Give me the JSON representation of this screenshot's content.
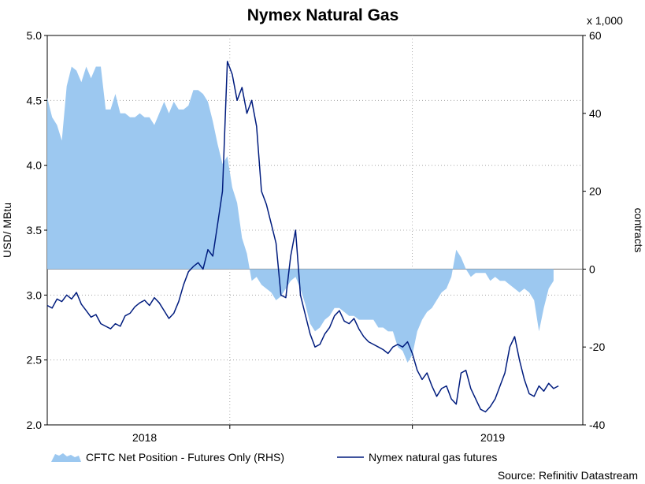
{
  "chart_data": {
    "type": "area+line",
    "title": "Nymex Natural Gas",
    "y_left": {
      "label": "USD/ MBtu",
      "range": [
        2.0,
        5.0
      ],
      "ticks": [
        "2.0",
        "2.5",
        "3.0",
        "3.5",
        "4.0",
        "4.5",
        "5.0"
      ]
    },
    "y_right": {
      "label": "contracts",
      "multiplier_label": "x 1,000",
      "range": [
        -40,
        60
      ],
      "ticks": [
        "-40",
        "-20",
        "0",
        "20",
        "40",
        "60"
      ]
    },
    "x": {
      "ticks": [
        "2018",
        "2019"
      ],
      "range": [
        2017.5,
        2019.7
      ]
    },
    "grid": true,
    "legend_position": "bottom",
    "source": "Source: Refinitiv Datastream",
    "series": [
      {
        "name": "CFTC Net Position - Futures Only (RHS)",
        "kind": "area",
        "color": "#9cc8f0",
        "axis": "right",
        "points": [
          [
            2017.5,
            44
          ],
          [
            2017.52,
            39
          ],
          [
            2017.54,
            37
          ],
          [
            2017.56,
            33
          ],
          [
            2017.58,
            47
          ],
          [
            2017.6,
            52
          ],
          [
            2017.62,
            51
          ],
          [
            2017.64,
            48
          ],
          [
            2017.66,
            52
          ],
          [
            2017.68,
            49
          ],
          [
            2017.7,
            52
          ],
          [
            2017.72,
            52
          ],
          [
            2017.74,
            41
          ],
          [
            2017.76,
            41
          ],
          [
            2017.78,
            45
          ],
          [
            2017.8,
            40
          ],
          [
            2017.82,
            40
          ],
          [
            2017.84,
            39
          ],
          [
            2017.86,
            39
          ],
          [
            2017.88,
            40
          ],
          [
            2017.9,
            39
          ],
          [
            2017.92,
            39
          ],
          [
            2017.94,
            37
          ],
          [
            2017.96,
            40
          ],
          [
            2017.98,
            43
          ],
          [
            2018.0,
            40
          ],
          [
            2018.02,
            43
          ],
          [
            2018.04,
            41
          ],
          [
            2018.06,
            41
          ],
          [
            2018.08,
            42
          ],
          [
            2018.1,
            46
          ],
          [
            2018.12,
            46
          ],
          [
            2018.14,
            45
          ],
          [
            2018.16,
            43
          ],
          [
            2018.18,
            38
          ],
          [
            2018.2,
            32
          ],
          [
            2018.22,
            27
          ],
          [
            2018.24,
            29
          ],
          [
            2018.26,
            21
          ],
          [
            2018.28,
            17
          ],
          [
            2018.3,
            8
          ],
          [
            2018.32,
            4
          ],
          [
            2018.34,
            -3
          ],
          [
            2018.36,
            -2
          ],
          [
            2018.38,
            -4
          ],
          [
            2018.4,
            -5
          ],
          [
            2018.42,
            -6
          ],
          [
            2018.44,
            -8
          ],
          [
            2018.46,
            -7
          ],
          [
            2018.48,
            -5
          ],
          [
            2018.5,
            -3
          ],
          [
            2018.52,
            -2
          ],
          [
            2018.54,
            -5
          ],
          [
            2018.56,
            -9
          ],
          [
            2018.58,
            -14
          ],
          [
            2018.6,
            -16
          ],
          [
            2018.62,
            -15
          ],
          [
            2018.64,
            -13
          ],
          [
            2018.66,
            -12
          ],
          [
            2018.68,
            -10
          ],
          [
            2018.7,
            -10
          ],
          [
            2018.72,
            -11
          ],
          [
            2018.74,
            -12
          ],
          [
            2018.76,
            -12
          ],
          [
            2018.78,
            -13
          ],
          [
            2018.8,
            -13
          ],
          [
            2018.82,
            -13
          ],
          [
            2018.84,
            -13
          ],
          [
            2018.86,
            -15
          ],
          [
            2018.88,
            -15
          ],
          [
            2018.9,
            -16
          ],
          [
            2018.92,
            -16
          ],
          [
            2018.94,
            -20
          ],
          [
            2018.96,
            -21
          ],
          [
            2018.98,
            -24
          ],
          [
            2019.0,
            -22
          ],
          [
            2019.02,
            -16
          ],
          [
            2019.04,
            -13
          ],
          [
            2019.06,
            -11
          ],
          [
            2019.08,
            -10
          ],
          [
            2019.1,
            -8
          ],
          [
            2019.12,
            -6
          ],
          [
            2019.14,
            -5
          ],
          [
            2019.16,
            -2
          ],
          [
            2019.18,
            5
          ],
          [
            2019.2,
            3
          ],
          [
            2019.22,
            0
          ],
          [
            2019.24,
            -2
          ],
          [
            2019.26,
            -1
          ],
          [
            2019.28,
            -1
          ],
          [
            2019.3,
            -1
          ],
          [
            2019.32,
            -3
          ],
          [
            2019.34,
            -2
          ],
          [
            2019.36,
            -3
          ],
          [
            2019.38,
            -3
          ],
          [
            2019.4,
            -4
          ],
          [
            2019.42,
            -5
          ],
          [
            2019.44,
            -6
          ],
          [
            2019.46,
            -5
          ],
          [
            2019.48,
            -6
          ],
          [
            2019.5,
            -8
          ],
          [
            2019.52,
            -16
          ],
          [
            2019.54,
            -10
          ],
          [
            2019.56,
            -5
          ],
          [
            2019.58,
            -3
          ]
        ]
      },
      {
        "name": "Nymex natural gas futures",
        "kind": "line",
        "color": "#001c7e",
        "axis": "left",
        "points": [
          [
            2017.5,
            2.92
          ],
          [
            2017.52,
            2.9
          ],
          [
            2017.54,
            2.97
          ],
          [
            2017.56,
            2.95
          ],
          [
            2017.58,
            3.0
          ],
          [
            2017.6,
            2.97
          ],
          [
            2017.62,
            3.02
          ],
          [
            2017.64,
            2.93
          ],
          [
            2017.66,
            2.88
          ],
          [
            2017.68,
            2.83
          ],
          [
            2017.7,
            2.85
          ],
          [
            2017.72,
            2.78
          ],
          [
            2017.74,
            2.76
          ],
          [
            2017.76,
            2.74
          ],
          [
            2017.78,
            2.78
          ],
          [
            2017.8,
            2.76
          ],
          [
            2017.82,
            2.84
          ],
          [
            2017.84,
            2.86
          ],
          [
            2017.86,
            2.91
          ],
          [
            2017.88,
            2.94
          ],
          [
            2017.9,
            2.96
          ],
          [
            2017.92,
            2.92
          ],
          [
            2017.94,
            2.98
          ],
          [
            2017.96,
            2.94
          ],
          [
            2017.98,
            2.88
          ],
          [
            2018.0,
            2.82
          ],
          [
            2018.02,
            2.86
          ],
          [
            2018.04,
            2.95
          ],
          [
            2018.06,
            3.08
          ],
          [
            2018.08,
            3.18
          ],
          [
            2018.1,
            3.22
          ],
          [
            2018.12,
            3.25
          ],
          [
            2018.14,
            3.2
          ],
          [
            2018.16,
            3.35
          ],
          [
            2018.18,
            3.3
          ],
          [
            2018.2,
            3.55
          ],
          [
            2018.22,
            3.8
          ],
          [
            2018.24,
            4.8
          ],
          [
            2018.26,
            4.7
          ],
          [
            2018.28,
            4.5
          ],
          [
            2018.3,
            4.6
          ],
          [
            2018.32,
            4.4
          ],
          [
            2018.34,
            4.5
          ],
          [
            2018.36,
            4.3
          ],
          [
            2018.38,
            3.8
          ],
          [
            2018.4,
            3.7
          ],
          [
            2018.42,
            3.55
          ],
          [
            2018.44,
            3.4
          ],
          [
            2018.46,
            3.0
          ],
          [
            2018.48,
            2.98
          ],
          [
            2018.5,
            3.3
          ],
          [
            2018.52,
            3.5
          ],
          [
            2018.54,
            3.0
          ],
          [
            2018.56,
            2.85
          ],
          [
            2018.58,
            2.7
          ],
          [
            2018.6,
            2.6
          ],
          [
            2018.62,
            2.62
          ],
          [
            2018.64,
            2.7
          ],
          [
            2018.66,
            2.75
          ],
          [
            2018.68,
            2.84
          ],
          [
            2018.7,
            2.88
          ],
          [
            2018.72,
            2.8
          ],
          [
            2018.74,
            2.78
          ],
          [
            2018.76,
            2.82
          ],
          [
            2018.78,
            2.74
          ],
          [
            2018.8,
            2.68
          ],
          [
            2018.82,
            2.64
          ],
          [
            2018.84,
            2.62
          ],
          [
            2018.86,
            2.6
          ],
          [
            2018.88,
            2.58
          ],
          [
            2018.9,
            2.55
          ],
          [
            2018.92,
            2.6
          ],
          [
            2018.94,
            2.62
          ],
          [
            2018.96,
            2.6
          ],
          [
            2018.98,
            2.64
          ],
          [
            2019.0,
            2.55
          ],
          [
            2019.02,
            2.42
          ],
          [
            2019.04,
            2.35
          ],
          [
            2019.06,
            2.4
          ],
          [
            2019.08,
            2.3
          ],
          [
            2019.1,
            2.22
          ],
          [
            2019.12,
            2.28
          ],
          [
            2019.14,
            2.3
          ],
          [
            2019.16,
            2.2
          ],
          [
            2019.18,
            2.16
          ],
          [
            2019.2,
            2.4
          ],
          [
            2019.22,
            2.42
          ],
          [
            2019.24,
            2.28
          ],
          [
            2019.26,
            2.2
          ],
          [
            2019.28,
            2.12
          ],
          [
            2019.3,
            2.1
          ],
          [
            2019.32,
            2.14
          ],
          [
            2019.34,
            2.2
          ],
          [
            2019.36,
            2.3
          ],
          [
            2019.38,
            2.4
          ],
          [
            2019.4,
            2.6
          ],
          [
            2019.42,
            2.68
          ],
          [
            2019.44,
            2.5
          ],
          [
            2019.46,
            2.35
          ],
          [
            2019.48,
            2.24
          ],
          [
            2019.5,
            2.22
          ],
          [
            2019.52,
            2.3
          ],
          [
            2019.54,
            2.26
          ],
          [
            2019.56,
            2.32
          ],
          [
            2019.58,
            2.28
          ],
          [
            2019.6,
            2.3
          ]
        ]
      }
    ]
  }
}
